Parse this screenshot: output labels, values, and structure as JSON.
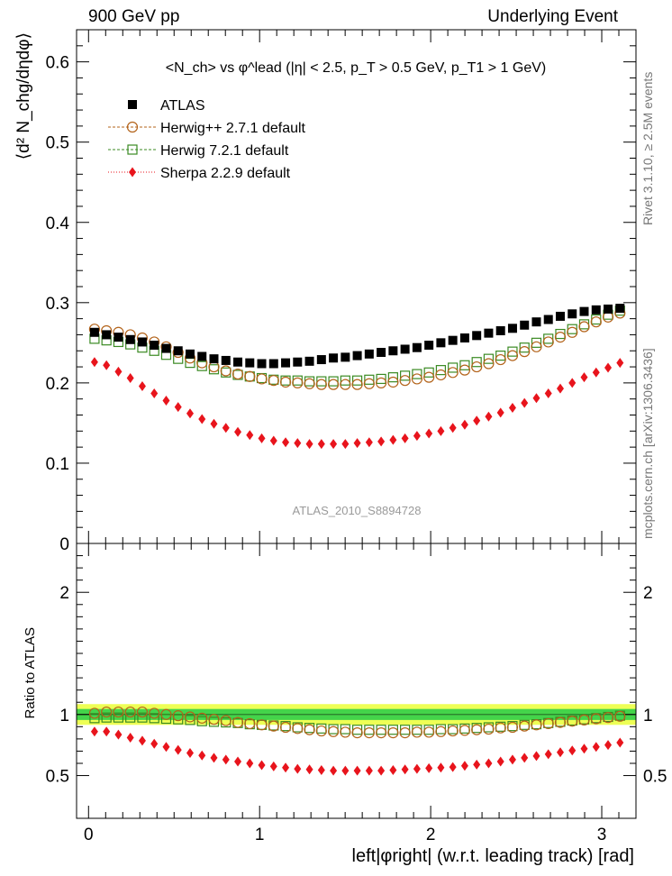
{
  "header": {
    "left": "900 GeV pp",
    "right": "Underlying Event"
  },
  "side_text": {
    "rivet": "Rivet 3.1.10, ≥ 2.5M events",
    "mcplots": "mcplots.cern.ch [arXiv:1306.3436]"
  },
  "colors": {
    "atlas": "#000000",
    "herwigpp": "#b3631a",
    "herwig7": "#3a8a22",
    "sherpa": "#e8141c",
    "band_inner": "#44d44a",
    "band_outer": "#eeff55"
  },
  "chart_data": {
    "type": "scatter",
    "title": "<N_ch> vs φ^lead (|η| < 2.5, p_T > 0.5 GeV, p_T1 > 1 GeV)",
    "analysis_label": "ATLAS_2010_S8894728",
    "xlabel": "left|φright| (w.r.t. leading track) [rad]",
    "ylabel_top": "⟨d² N_chg/dηdφ⟩",
    "ylabel_bottom": "Ratio to ATLAS",
    "xlim": [
      -0.07,
      3.2
    ],
    "ylim_top": [
      0,
      0.64
    ],
    "ylim_bottom": [
      0.15,
      2.4
    ],
    "x_ticks": [
      "0",
      "1",
      "2",
      "3"
    ],
    "y_ticks_top": [
      "0",
      "0.1",
      "0.2",
      "0.3",
      "0.4",
      "0.5",
      "0.6"
    ],
    "y_ticks_bottom": [
      "0.5",
      "1",
      "2"
    ],
    "legend": [
      "ATLAS",
      "Herwig++ 2.7.1 default",
      "Herwig 7.2.1 default",
      "Sherpa 2.2.9 default"
    ],
    "x": [
      0.0349,
      0.1047,
      0.1745,
      0.2443,
      0.3142,
      0.384,
      0.4538,
      0.5236,
      0.5934,
      0.6632,
      0.733,
      0.8029,
      0.8727,
      0.9425,
      1.0123,
      1.0821,
      1.1519,
      1.2217,
      1.2915,
      1.3614,
      1.4312,
      1.501,
      1.5708,
      1.6406,
      1.7104,
      1.7802,
      1.85,
      1.9199,
      1.9897,
      2.0595,
      2.1293,
      2.1991,
      2.2689,
      2.3387,
      2.4086,
      2.4784,
      2.5482,
      2.618,
      2.6878,
      2.7576,
      2.8274,
      2.8972,
      2.9671,
      3.0369,
      3.1067
    ],
    "series": [
      {
        "name": "ATLAS",
        "marker": "square-filled",
        "values": [
          0.263,
          0.26,
          0.257,
          0.254,
          0.251,
          0.247,
          0.243,
          0.24,
          0.236,
          0.233,
          0.23,
          0.228,
          0.226,
          0.225,
          0.224,
          0.224,
          0.225,
          0.226,
          0.227,
          0.229,
          0.231,
          0.232,
          0.234,
          0.236,
          0.238,
          0.24,
          0.242,
          0.244,
          0.247,
          0.25,
          0.253,
          0.256,
          0.259,
          0.262,
          0.265,
          0.268,
          0.272,
          0.276,
          0.279,
          0.283,
          0.286,
          0.289,
          0.291,
          0.292,
          0.293
        ],
        "ratio": [
          1.0,
          1.0,
          1.0,
          1.0,
          1.0,
          1.0,
          1.0,
          1.0,
          1.0,
          1.0,
          1.0,
          1.0,
          1.0,
          1.0,
          1.0,
          1.0,
          1.0,
          1.0,
          1.0,
          1.0,
          1.0,
          1.0,
          1.0,
          1.0,
          1.0,
          1.0,
          1.0,
          1.0,
          1.0,
          1.0,
          1.0,
          1.0,
          1.0,
          1.0,
          1.0,
          1.0,
          1.0,
          1.0,
          1.0,
          1.0,
          1.0,
          1.0,
          1.0,
          1.0,
          1.0
        ]
      },
      {
        "name": "Herwig++ 2.7.1 default",
        "marker": "circle-open",
        "values": [
          0.267,
          0.265,
          0.263,
          0.26,
          0.256,
          0.251,
          0.245,
          0.238,
          0.231,
          0.225,
          0.22,
          0.215,
          0.211,
          0.208,
          0.205,
          0.203,
          0.201,
          0.2,
          0.199,
          0.198,
          0.198,
          0.198,
          0.198,
          0.199,
          0.2,
          0.201,
          0.203,
          0.205,
          0.207,
          0.21,
          0.213,
          0.216,
          0.22,
          0.224,
          0.229,
          0.234,
          0.239,
          0.245,
          0.251,
          0.257,
          0.263,
          0.27,
          0.276,
          0.282,
          0.287
        ],
        "ratio": [
          1.01,
          1.02,
          1.02,
          1.02,
          1.02,
          1.01,
          1.0,
          0.99,
          0.98,
          0.97,
          0.96,
          0.95,
          0.935,
          0.925,
          0.915,
          0.905,
          0.895,
          0.885,
          0.875,
          0.865,
          0.86,
          0.855,
          0.85,
          0.85,
          0.85,
          0.85,
          0.85,
          0.855,
          0.855,
          0.86,
          0.865,
          0.87,
          0.875,
          0.88,
          0.89,
          0.895,
          0.905,
          0.915,
          0.925,
          0.935,
          0.945,
          0.955,
          0.965,
          0.975,
          0.985
        ]
      },
      {
        "name": "Herwig 7.2.1 default",
        "marker": "square-open",
        "values": [
          0.255,
          0.253,
          0.251,
          0.248,
          0.244,
          0.24,
          0.235,
          0.23,
          0.225,
          0.221,
          0.217,
          0.213,
          0.21,
          0.208,
          0.206,
          0.204,
          0.203,
          0.203,
          0.202,
          0.202,
          0.202,
          0.203,
          0.203,
          0.204,
          0.205,
          0.207,
          0.209,
          0.211,
          0.213,
          0.216,
          0.219,
          0.222,
          0.226,
          0.23,
          0.234,
          0.239,
          0.244,
          0.25,
          0.255,
          0.261,
          0.267,
          0.273,
          0.279,
          0.285,
          0.29
        ],
        "ratio": [
          0.97,
          0.975,
          0.975,
          0.975,
          0.975,
          0.97,
          0.965,
          0.96,
          0.955,
          0.945,
          0.94,
          0.935,
          0.93,
          0.92,
          0.915,
          0.91,
          0.905,
          0.895,
          0.89,
          0.885,
          0.88,
          0.88,
          0.875,
          0.875,
          0.875,
          0.875,
          0.875,
          0.875,
          0.875,
          0.88,
          0.88,
          0.885,
          0.89,
          0.895,
          0.9,
          0.905,
          0.915,
          0.92,
          0.93,
          0.94,
          0.95,
          0.96,
          0.97,
          0.98,
          0.99
        ]
      },
      {
        "name": "Sherpa 2.2.9 default",
        "marker": "diamond-filled",
        "values": [
          0.226,
          0.222,
          0.214,
          0.206,
          0.196,
          0.187,
          0.178,
          0.17,
          0.162,
          0.155,
          0.149,
          0.144,
          0.139,
          0.135,
          0.131,
          0.128,
          0.126,
          0.125,
          0.124,
          0.124,
          0.124,
          0.124,
          0.125,
          0.126,
          0.127,
          0.129,
          0.131,
          0.134,
          0.137,
          0.14,
          0.144,
          0.148,
          0.153,
          0.158,
          0.163,
          0.169,
          0.175,
          0.181,
          0.187,
          0.193,
          0.2,
          0.207,
          0.213,
          0.219,
          0.225
        ],
        "ratio": [
          0.86,
          0.86,
          0.835,
          0.81,
          0.785,
          0.76,
          0.735,
          0.71,
          0.685,
          0.665,
          0.645,
          0.63,
          0.615,
          0.6,
          0.585,
          0.575,
          0.565,
          0.555,
          0.55,
          0.545,
          0.54,
          0.54,
          0.54,
          0.54,
          0.54,
          0.545,
          0.55,
          0.555,
          0.56,
          0.565,
          0.57,
          0.58,
          0.59,
          0.6,
          0.615,
          0.63,
          0.645,
          0.66,
          0.675,
          0.69,
          0.705,
          0.72,
          0.735,
          0.75,
          0.77
        ]
      }
    ]
  }
}
